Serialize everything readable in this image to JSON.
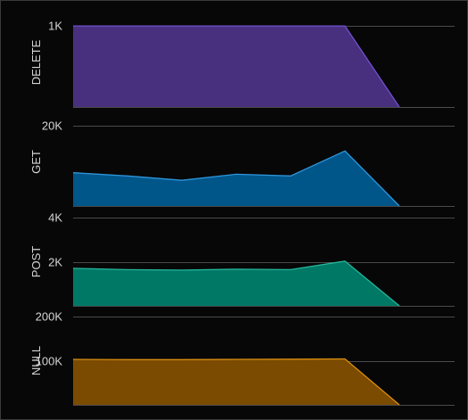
{
  "chart_data": [
    {
      "type": "area",
      "ylabel": "DELETE",
      "ylim": [
        0,
        1100
      ],
      "ticks": [
        {
          "value": 1000,
          "label": "1K"
        }
      ],
      "x": [
        0,
        1,
        2,
        3,
        4,
        5,
        6
      ],
      "values": [
        1000,
        1000,
        1000,
        1000,
        1000,
        1000,
        0
      ],
      "fill": "#48307e",
      "stroke": "#7150d1"
    },
    {
      "type": "area",
      "ylabel": "GET",
      "ylim": [
        0,
        22000
      ],
      "ticks": [
        {
          "value": 20000,
          "label": "20K"
        }
      ],
      "x": [
        0,
        1,
        2,
        3,
        4,
        5,
        6
      ],
      "values": [
        8300,
        7500,
        6400,
        7900,
        7500,
        13700,
        0
      ],
      "fill": "#005589",
      "stroke": "#2e96db"
    },
    {
      "type": "area",
      "ylabel": "POST",
      "ylim": [
        0,
        4000
      ],
      "ticks": [
        {
          "value": 4000,
          "label": "4K"
        },
        {
          "value": 2000,
          "label": "2K"
        }
      ],
      "x": [
        0,
        1,
        2,
        3,
        4,
        5,
        6
      ],
      "values": [
        1700,
        1640,
        1620,
        1660,
        1640,
        2030,
        0
      ],
      "fill": "#007866",
      "stroke": "#25b79c"
    },
    {
      "type": "area",
      "ylabel": "NULL",
      "ylim": [
        0,
        200000
      ],
      "ticks": [
        {
          "value": 200000,
          "label": "200K"
        },
        {
          "value": 100000,
          "label": "100K"
        }
      ],
      "x": [
        0,
        1,
        2,
        3,
        4,
        5,
        6
      ],
      "values": [
        103000,
        102500,
        102500,
        103000,
        103500,
        104000,
        0
      ],
      "fill": "#7a4b00",
      "stroke": "#d98d12"
    }
  ]
}
